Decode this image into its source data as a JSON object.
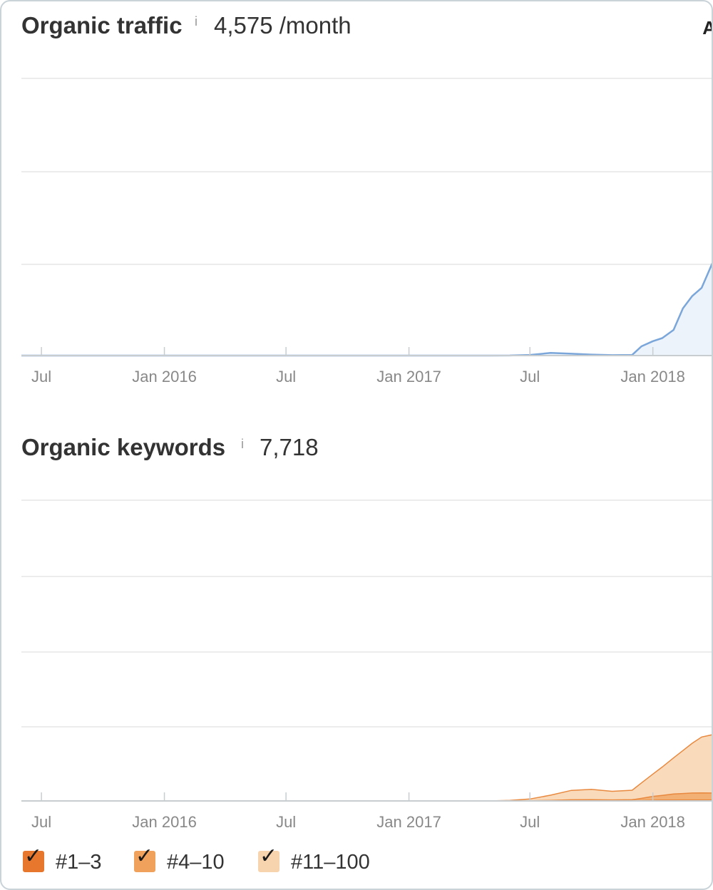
{
  "traffic": {
    "title": "Organic traffic",
    "info_icon": "info-icon",
    "value": "4,575 /month",
    "corner_label": "A"
  },
  "keywords": {
    "title": "Organic keywords",
    "info_icon": "info-icon",
    "value": "7,718"
  },
  "legend": [
    {
      "label": "#1–3",
      "color": "#e8772e",
      "checked": true
    },
    {
      "label": "#4–10",
      "color": "#f0a25c",
      "checked": true
    },
    {
      "label": "#11–100",
      "color": "#f8d4ae",
      "checked": true
    }
  ],
  "colors": {
    "traffic_line": "#7aa6da",
    "traffic_fill": "#edf3fb",
    "grid": "#e6e6e6",
    "axis": "#c8cdd0",
    "tick_text": "#888888"
  },
  "chart_data": [
    {
      "type": "area",
      "title": "Organic traffic",
      "xlabel": "",
      "ylabel": "",
      "x_ticks": [
        "Jul",
        "Jan 2016",
        "Jul",
        "Jan 2017",
        "Jul",
        "Jan 2018"
      ],
      "x": [
        "2015-06",
        "2015-07",
        "2015-09",
        "2015-11",
        "2016-01",
        "2016-03",
        "2016-05",
        "2016-07",
        "2016-09",
        "2016-11",
        "2017-01",
        "2017-03",
        "2017-05",
        "2017-06",
        "2017-07",
        "2017-08",
        "2017-09",
        "2017-10",
        "2017-11",
        "2017-12",
        "2017-12-15",
        "2018-01",
        "2018-01-15",
        "2018-02",
        "2018-02-15",
        "2018-03",
        "2018-03-15",
        "2018-04"
      ],
      "series": [
        {
          "values": [
            0,
            0,
            0,
            0,
            0,
            0,
            0,
            0,
            0,
            0,
            0,
            0,
            0,
            5,
            30,
            130,
            90,
            50,
            20,
            30,
            450,
            700,
            850,
            1250,
            2300,
            2900,
            3300,
            4575
          ],
          "color": "#7aa6da"
        }
      ],
      "ylim": [
        0,
        13500
      ],
      "grid": true,
      "legend": "none"
    },
    {
      "type": "area",
      "title": "Organic keywords",
      "xlabel": "",
      "ylabel": "",
      "x_ticks": [
        "Jul",
        "Jan 2016",
        "Jul",
        "Jan 2017",
        "Jul",
        "Jan 2018"
      ],
      "x": [
        "2015-06",
        "2015-07",
        "2015-09",
        "2015-11",
        "2016-01",
        "2016-03",
        "2016-05",
        "2016-07",
        "2016-09",
        "2016-11",
        "2017-01",
        "2017-03",
        "2017-05",
        "2017-06",
        "2017-07",
        "2017-08",
        "2017-09",
        "2017-10",
        "2017-11",
        "2017-12",
        "2017-12-15",
        "2018-01",
        "2018-01-15",
        "2018-02",
        "2018-02-15",
        "2018-03",
        "2018-03-15",
        "2018-04"
      ],
      "series": [
        {
          "name": "#11–100",
          "values": [
            0,
            0,
            0,
            0,
            0,
            0,
            0,
            0,
            0,
            0,
            0,
            0,
            0,
            50,
            200,
            600,
            1100,
            1200,
            1000,
            1100,
            1800,
            2600,
            3300,
            4200,
            5000,
            5800,
            6500,
            6800
          ],
          "color": "#f8d4ae"
        },
        {
          "name": "#4–10",
          "values": [
            0,
            0,
            0,
            0,
            0,
            0,
            0,
            0,
            0,
            0,
            0,
            0,
            0,
            5,
            20,
            60,
            110,
            120,
            100,
            120,
            250,
            450,
            550,
            700,
            750,
            800,
            820,
            800
          ],
          "color": "#f0a25c"
        },
        {
          "name": "#1–3",
          "values": [
            0,
            0,
            0,
            0,
            0,
            0,
            0,
            0,
            0,
            0,
            0,
            0,
            0,
            0,
            5,
            10,
            20,
            25,
            20,
            25,
            50,
            80,
            100,
            110,
            115,
            118,
            120,
            118
          ],
          "color": "#e8772e"
        }
      ],
      "stacked": true,
      "ylim": [
        0,
        35000
      ],
      "grid": true,
      "legend": "bottom-left"
    }
  ]
}
